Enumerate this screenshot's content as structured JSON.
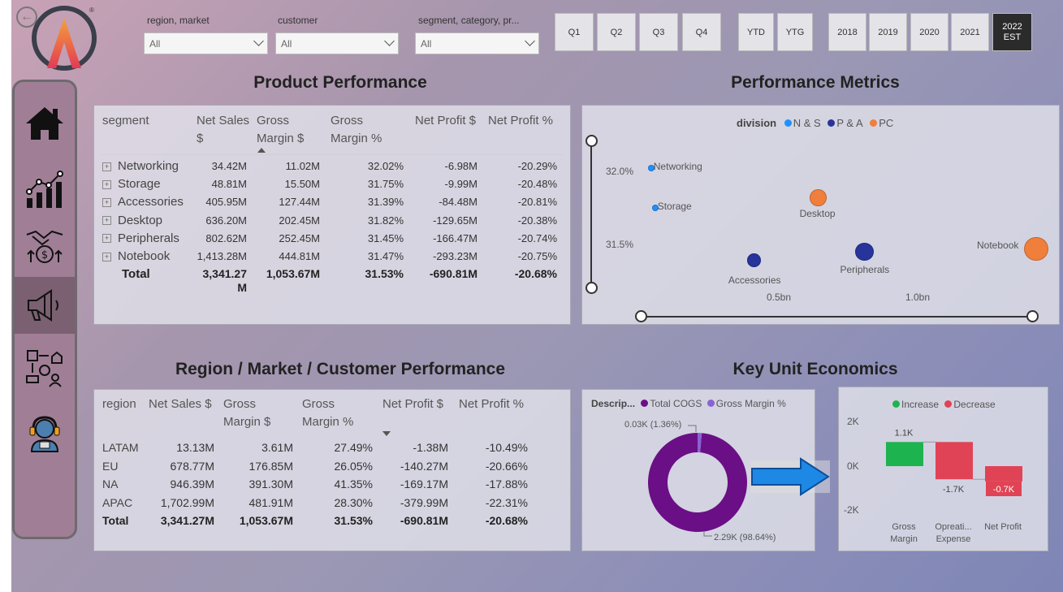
{
  "slicers": [
    {
      "label": "region, market",
      "value": "All"
    },
    {
      "label": "customer",
      "value": "All"
    },
    {
      "label": "segment, category, pr...",
      "value": "All"
    }
  ],
  "quarter_buttons": [
    "Q1",
    "Q2",
    "Q3",
    "Q4"
  ],
  "ytd_buttons": [
    "YTD",
    "YTG"
  ],
  "year_buttons": [
    "2018",
    "2019",
    "2020",
    "2021"
  ],
  "selected_year": {
    "line1": "2022",
    "line2": "EST"
  },
  "sidebar": {
    "items": [
      {
        "icon": "home-icon"
      },
      {
        "icon": "finance-chart-icon"
      },
      {
        "icon": "sales-handshake-icon"
      },
      {
        "icon": "marketing-megaphone-icon",
        "active": true
      },
      {
        "icon": "supply-chain-icon"
      },
      {
        "icon": "support-agent-icon"
      }
    ]
  },
  "product": {
    "title": "Product Performance",
    "headers": [
      "segment",
      "Net Sales $",
      "Gross Margin $",
      "Gross Margin %",
      "Net Profit $",
      "Net Profit %"
    ],
    "rows": [
      [
        "Networking",
        "34.42M",
        "11.02M",
        "32.02%",
        "-6.98M",
        "-20.29%"
      ],
      [
        "Storage",
        "48.81M",
        "15.50M",
        "31.75%",
        "-9.99M",
        "-20.48%"
      ],
      [
        "Accessories",
        "405.95M",
        "127.44M",
        "31.39%",
        "-84.48M",
        "-20.81%"
      ],
      [
        "Desktop",
        "636.20M",
        "202.45M",
        "31.82%",
        "-129.65M",
        "-20.38%"
      ],
      [
        "Peripherals",
        "802.62M",
        "252.45M",
        "31.45%",
        "-166.47M",
        "-20.74%"
      ],
      [
        "Notebook",
        "1,413.28M",
        "444.81M",
        "31.47%",
        "-293.23M",
        "-20.75%"
      ]
    ],
    "total": [
      "Total",
      "3,341.27 M",
      "1,053.67M",
      "31.53%",
      "-690.81M",
      "-20.68%"
    ]
  },
  "performance": {
    "title": "Performance Metrics",
    "legend_title": "division",
    "legend": [
      {
        "name": "N & S",
        "color": "#1e90ff"
      },
      {
        "name": "P & A",
        "color": "#26349b"
      },
      {
        "name": "PC",
        "color": "#f07f3c"
      }
    ],
    "y_ticks": [
      "32.0%",
      "31.5%"
    ],
    "x_ticks": [
      "0.5bn",
      "1.0bn"
    ],
    "chart_data": {
      "type": "scatter",
      "x_ticks": [
        "0.5bn",
        "1.0bn"
      ],
      "y_ticks": [
        "32.0%",
        "31.5%"
      ],
      "points": [
        {
          "label": "Networking",
          "division": "N & S",
          "x": 34.42,
          "y": 32.02,
          "size": 11.02
        },
        {
          "label": "Storage",
          "division": "N & S",
          "x": 48.81,
          "y": 31.75,
          "size": 15.5
        },
        {
          "label": "Desktop",
          "division": "PC",
          "x": 636.2,
          "y": 31.82,
          "size": 202.45
        },
        {
          "label": "Accessories",
          "division": "P & A",
          "x": 405.95,
          "y": 31.39,
          "size": 127.44
        },
        {
          "label": "Peripherals",
          "division": "P & A",
          "x": 802.62,
          "y": 31.45,
          "size": 252.45
        },
        {
          "label": "Notebook",
          "division": "PC",
          "x": 1413.28,
          "y": 31.47,
          "size": 444.81
        }
      ]
    }
  },
  "region": {
    "title": "Region / Market / Customer Performance",
    "headers": [
      "region",
      "Net Sales $",
      "Gross Margin $",
      "Gross Margin %",
      "Net Profit $",
      "Net Profit %"
    ],
    "rows": [
      [
        "LATAM",
        "13.13M",
        "3.61M",
        "27.49%",
        "-1.38M",
        "-10.49%"
      ],
      [
        "EU",
        "678.77M",
        "176.85M",
        "26.05%",
        "-140.27M",
        "-20.66%"
      ],
      [
        "NA",
        "946.39M",
        "391.30M",
        "41.35%",
        "-169.17M",
        "-17.88%"
      ],
      [
        "APAC",
        "1,702.99M",
        "481.91M",
        "28.30%",
        "-379.99M",
        "-22.31%"
      ]
    ],
    "total": [
      "Total",
      "3,341.27M",
      "1,053.67M",
      "31.53%",
      "-690.81M",
      "-20.68%"
    ]
  },
  "unit_economics": {
    "title": "Key Unit Economics",
    "donut": {
      "legend_title": "Descrip...",
      "legend": [
        {
          "name": "Total COGS",
          "color": "#6b0f86"
        },
        {
          "name": "Gross Margin %",
          "color": "#8a63d2"
        }
      ],
      "label_small": "0.03K (1.36%)",
      "label_big": "2.29K (98.64%)",
      "chart_data": {
        "type": "pie",
        "slices": [
          {
            "name": "Total COGS",
            "value": 2.29,
            "percent": 98.64
          },
          {
            "name": "Gross Margin %",
            "value": 0.03,
            "percent": 1.36
          }
        ]
      }
    },
    "waterfall": {
      "legend": [
        {
          "name": "Increase",
          "color": "#1db34f"
        },
        {
          "name": "Decrease",
          "color": "#e04355"
        }
      ],
      "y_ticks": [
        "2K",
        "0K",
        "-2K"
      ],
      "categories": [
        "Gross Margin",
        "Opreati... Expense",
        "Net Profit"
      ],
      "cat_lines": [
        [
          "Gross",
          "Margin"
        ],
        [
          "Opreati...",
          "Expense"
        ],
        [
          "Net Profit",
          ""
        ]
      ],
      "value_labels": [
        "1.1K",
        "-1.7K",
        "-0.7K"
      ],
      "chart_data": {
        "type": "bar",
        "categories": [
          "Gross Margin",
          "Opreati... Expense",
          "Net Profit"
        ],
        "values": [
          1.1,
          -1.7,
          -0.7
        ],
        "ylim": [
          -2,
          2
        ]
      }
    }
  }
}
